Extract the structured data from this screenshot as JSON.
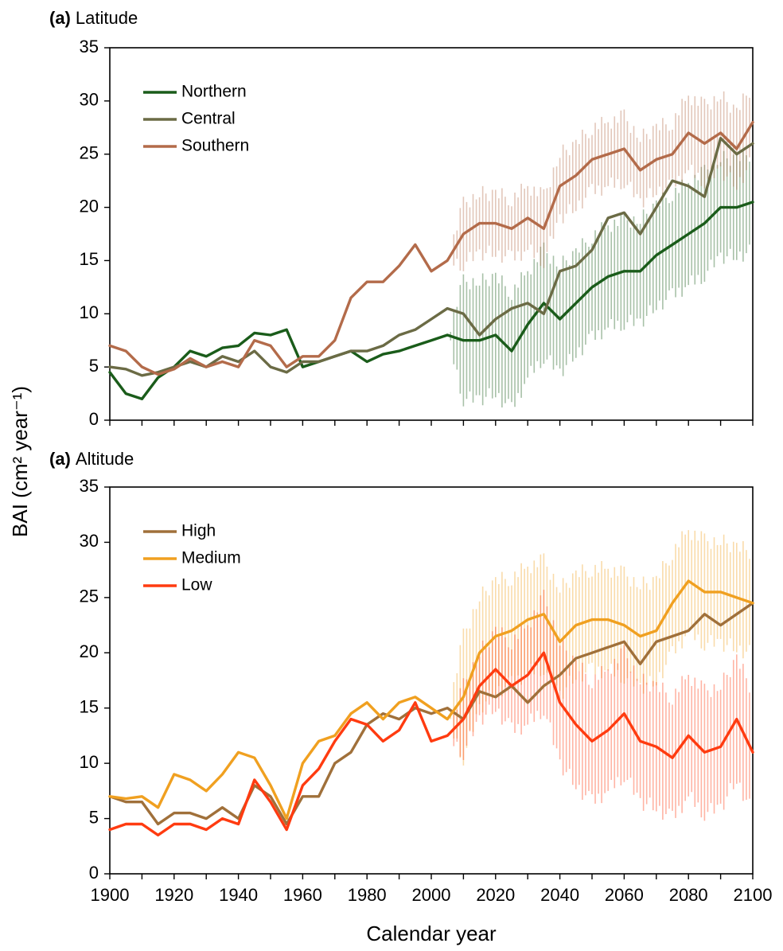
{
  "chart_data": [
    {
      "type": "line",
      "panel_letter": "(a)",
      "title": "Latitude",
      "xlabel": "Calendar year",
      "ylabel": "BAI (cm² year⁻¹)",
      "xlim": [
        1900,
        2100
      ],
      "ylim": [
        0,
        35
      ],
      "y_ticks": [
        0,
        5,
        10,
        15,
        20,
        25,
        30,
        35
      ],
      "x_ticks": [
        1900,
        1920,
        1940,
        1960,
        1980,
        2000,
        2020,
        2040,
        2060,
        2080,
        2100
      ],
      "legend_position": "top-left",
      "x": [
        1900,
        1905,
        1910,
        1915,
        1920,
        1925,
        1930,
        1935,
        1940,
        1945,
        1950,
        1955,
        1960,
        1965,
        1970,
        1975,
        1980,
        1985,
        1990,
        1995,
        2000,
        2005,
        2010,
        2015,
        2020,
        2025,
        2030,
        2035,
        2040,
        2045,
        2050,
        2055,
        2060,
        2065,
        2070,
        2075,
        2080,
        2085,
        2090,
        2095,
        2100
      ],
      "series": [
        {
          "name": "Northern",
          "color": "#1a5c1a",
          "values": [
            4.5,
            2.5,
            2.0,
            4.0,
            5.0,
            6.5,
            6.0,
            6.8,
            7.0,
            8.2,
            8.0,
            8.5,
            5.0,
            5.5,
            6.0,
            6.5,
            5.5,
            6.2,
            6.5,
            7.0,
            7.5,
            8.0,
            7.5,
            7.5,
            8.0,
            6.5,
            9.0,
            11.0,
            9.5,
            11.0,
            12.5,
            13.5,
            14.0,
            14.0,
            15.5,
            16.5,
            17.5,
            18.5,
            20.0,
            20.0,
            20.5
          ],
          "error": [
            0,
            0,
            0,
            0,
            0,
            0,
            0,
            0,
            0,
            0,
            0,
            0,
            0,
            0,
            0,
            0,
            0,
            0,
            0,
            0,
            0,
            0,
            5.5,
            5.5,
            5.5,
            5.5,
            5.0,
            5.0,
            5.0,
            4.8,
            4.8,
            4.8,
            4.8,
            4.8,
            4.8,
            4.8,
            4.8,
            4.8,
            4.6,
            4.6,
            4.6
          ]
        },
        {
          "name": "Central",
          "color": "#6b6b45",
          "values": [
            5.0,
            4.8,
            4.2,
            4.5,
            5.0,
            5.5,
            5.0,
            6.0,
            5.5,
            6.5,
            5.0,
            4.5,
            5.5,
            5.5,
            6.0,
            6.5,
            6.5,
            7.0,
            8.0,
            8.5,
            9.5,
            10.5,
            10.0,
            8.0,
            9.5,
            10.5,
            11.0,
            10.0,
            14.0,
            14.5,
            16.0,
            19.0,
            19.5,
            17.5,
            20.0,
            22.5,
            22.0,
            21.0,
            26.5,
            25.0,
            26.0
          ],
          "error": []
        },
        {
          "name": "Southern",
          "color": "#b36b4a",
          "values": [
            7.0,
            6.5,
            5.0,
            4.3,
            4.8,
            5.8,
            5.0,
            5.5,
            5.0,
            7.5,
            7.0,
            5.0,
            6.0,
            6.0,
            7.5,
            11.5,
            13.0,
            13.0,
            14.5,
            16.5,
            14.0,
            15.0,
            17.5,
            18.5,
            18.5,
            18.0,
            19.0,
            18.0,
            22.0,
            23.0,
            24.5,
            25.0,
            25.5,
            23.5,
            24.5,
            25.0,
            27.0,
            26.0,
            27.0,
            25.5,
            28.0
          ],
          "error": [
            0,
            0,
            0,
            0,
            0,
            0,
            0,
            0,
            0,
            0,
            0,
            0,
            0,
            0,
            0,
            0,
            0,
            0,
            0,
            0,
            0,
            0,
            2.8,
            2.8,
            2.8,
            2.8,
            3.0,
            3.0,
            3.0,
            3.0,
            3.0,
            3.0,
            3.0,
            3.0,
            3.0,
            3.0,
            3.5,
            3.5,
            3.5,
            3.5,
            3.5
          ]
        }
      ]
    },
    {
      "type": "line",
      "panel_letter": "(a)",
      "title": "Altitude",
      "xlabel": "Calendar year",
      "ylabel": "BAI (cm² year⁻¹)",
      "xlim": [
        1900,
        2100
      ],
      "ylim": [
        0,
        35
      ],
      "y_ticks": [
        0,
        5,
        10,
        15,
        20,
        25,
        30,
        35
      ],
      "x_ticks": [
        1900,
        1920,
        1940,
        1960,
        1980,
        2000,
        2020,
        2040,
        2060,
        2080,
        2100
      ],
      "legend_position": "top-left",
      "x": [
        1900,
        1905,
        1910,
        1915,
        1920,
        1925,
        1930,
        1935,
        1940,
        1945,
        1950,
        1955,
        1960,
        1965,
        1970,
        1975,
        1980,
        1985,
        1990,
        1995,
        2000,
        2005,
        2010,
        2015,
        2020,
        2025,
        2030,
        2035,
        2040,
        2045,
        2050,
        2055,
        2060,
        2065,
        2070,
        2075,
        2080,
        2085,
        2090,
        2095,
        2100
      ],
      "series": [
        {
          "name": "High",
          "color": "#a0703a",
          "values": [
            7.0,
            6.5,
            6.5,
            4.5,
            5.5,
            5.5,
            5.0,
            6.0,
            5.0,
            8.0,
            7.0,
            4.5,
            7.0,
            7.0,
            10.0,
            11.0,
            13.5,
            14.5,
            14.0,
            15.0,
            14.5,
            15.0,
            14.0,
            16.5,
            16.0,
            17.0,
            15.5,
            17.0,
            18.0,
            19.5,
            20.0,
            20.5,
            21.0,
            19.0,
            21.0,
            21.5,
            22.0,
            23.5,
            22.5,
            23.5,
            24.5
          ],
          "error": [
            0,
            0,
            0,
            0,
            0,
            0,
            0,
            0,
            0,
            0,
            0,
            0,
            0,
            0,
            0,
            0,
            0,
            0,
            0,
            0,
            0,
            0,
            0,
            0,
            0,
            0,
            0,
            0,
            0,
            0,
            0,
            0,
            0,
            0,
            0,
            0,
            0,
            0,
            0,
            0,
            0
          ]
        },
        {
          "name": "Medium",
          "color": "#f0a020",
          "values": [
            7.0,
            6.8,
            7.0,
            6.0,
            9.0,
            8.5,
            7.5,
            9.0,
            11.0,
            10.5,
            8.0,
            5.0,
            10.0,
            12.0,
            12.5,
            14.5,
            15.5,
            14.0,
            15.5,
            16.0,
            15.0,
            14.0,
            16.0,
            20.0,
            21.5,
            22.0,
            23.0,
            23.5,
            21.0,
            22.5,
            23.0,
            23.0,
            22.5,
            21.5,
            22.0,
            24.5,
            26.5,
            25.5,
            25.5,
            25.0,
            24.5
          ],
          "error": [
            0,
            0,
            0,
            0,
            0,
            0,
            0,
            0,
            0,
            0,
            0,
            0,
            0,
            0,
            0,
            0,
            0,
            0,
            0,
            0,
            0,
            0,
            5.5,
            5.0,
            5.0,
            4.8,
            4.8,
            4.8,
            4.8,
            4.6,
            4.6,
            4.6,
            4.6,
            4.6,
            4.6,
            4.6,
            4.6,
            4.6,
            4.6,
            4.6,
            4.6
          ]
        },
        {
          "name": "Low",
          "color": "#ff3b10",
          "values": [
            4.0,
            4.5,
            4.5,
            3.5,
            4.5,
            4.5,
            4.0,
            5.0,
            4.5,
            8.5,
            6.5,
            4.0,
            8.0,
            9.5,
            12.0,
            14.0,
            13.5,
            12.0,
            13.0,
            15.5,
            12.0,
            12.5,
            14.0,
            17.0,
            18.5,
            17.0,
            18.0,
            20.0,
            15.5,
            13.5,
            12.0,
            13.0,
            14.5,
            12.0,
            11.5,
            10.5,
            12.5,
            11.0,
            11.5,
            14.0,
            11.0
          ],
          "error": [
            0,
            0,
            0,
            0,
            0,
            0,
            0,
            0,
            0,
            0,
            0,
            0,
            0,
            0,
            0,
            0,
            0,
            0,
            0,
            0,
            0,
            0,
            3.0,
            3.0,
            3.5,
            4.0,
            4.5,
            5.0,
            5.5,
            5.5,
            5.5,
            5.5,
            5.5,
            5.5,
            5.5,
            5.5,
            5.5,
            5.5,
            5.5,
            5.5,
            5.5
          ]
        }
      ]
    }
  ]
}
